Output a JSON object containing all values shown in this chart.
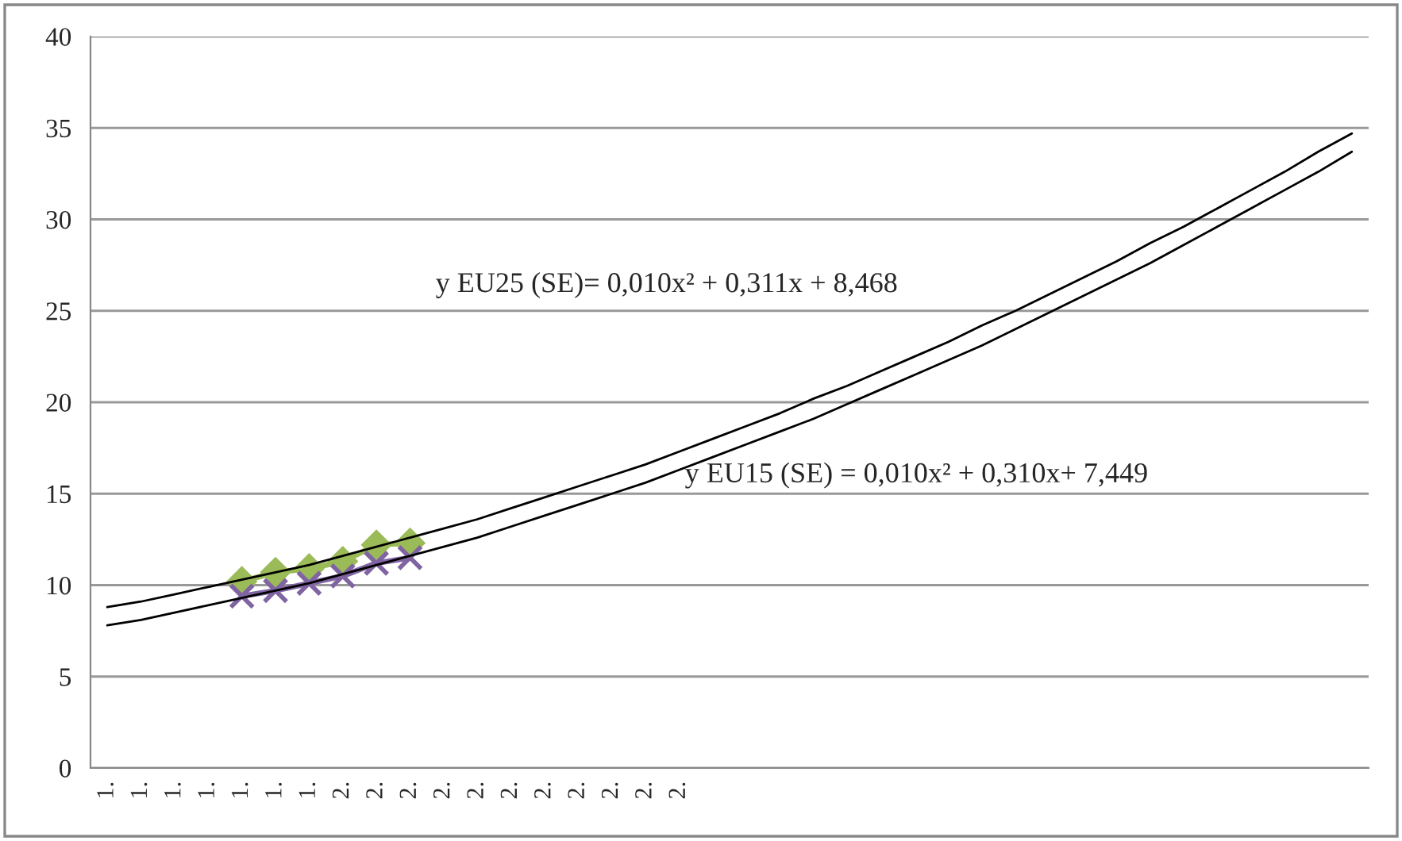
{
  "chart_data": {
    "type": "line",
    "categories": [
      "1.",
      "1.",
      "1.",
      "1.",
      "1.",
      "1.",
      "1.",
      "2.",
      "2.",
      "2.",
      "2.",
      "2.",
      "2.",
      "2.",
      "2.",
      "2.",
      "2.",
      "2.",
      null,
      null,
      null,
      null,
      null,
      null,
      null,
      null,
      null,
      null,
      null,
      null,
      null,
      null,
      null,
      null,
      null,
      null,
      null,
      null
    ],
    "series": [
      {
        "color": "#000000",
        "marker": "none",
        "values": [
          8.8,
          9.1,
          9.5,
          9.9,
          10.3,
          10.7,
          11.1,
          11.6,
          12.1,
          12.6,
          13.1,
          13.6,
          14.2,
          14.8,
          15.4,
          16.0,
          16.6,
          17.3,
          18.0,
          18.7,
          19.4,
          20.2,
          20.9,
          21.7,
          22.5,
          23.3,
          24.2,
          25.0,
          25.9,
          26.8,
          27.7,
          28.7,
          29.6,
          30.6,
          31.6,
          32.6,
          33.7,
          34.7
        ]
      },
      {
        "color": "#000000",
        "marker": "none",
        "values": [
          7.8,
          8.1,
          8.5,
          8.9,
          9.3,
          9.7,
          10.1,
          10.6,
          11.1,
          11.6,
          12.1,
          12.6,
          13.2,
          13.8,
          14.4,
          15.0,
          15.6,
          16.3,
          17.0,
          17.7,
          18.4,
          19.1,
          19.9,
          20.7,
          21.5,
          22.3,
          23.1,
          24.0,
          24.9,
          25.8,
          26.7,
          27.6,
          28.6,
          29.6,
          30.6,
          31.6,
          32.6,
          33.7
        ]
      },
      {
        "color": "#9bbb59",
        "marker": "diamond",
        "values": [
          null,
          null,
          null,
          null,
          10.2,
          10.7,
          10.9,
          11.3,
          12.2,
          12.3,
          null,
          null,
          null,
          null,
          null,
          null,
          null,
          null,
          null,
          null,
          null,
          null,
          null,
          null,
          null,
          null,
          null,
          null,
          null,
          null,
          null,
          null,
          null,
          null,
          null,
          null,
          null,
          null
        ]
      },
      {
        "color": "#8064a2",
        "marker": "cross",
        "values": [
          null,
          null,
          null,
          null,
          9.4,
          9.7,
          10.1,
          10.5,
          11.2,
          11.5,
          null,
          null,
          null,
          null,
          null,
          null,
          null,
          null,
          null,
          null,
          null,
          null,
          null,
          null,
          null,
          null,
          null,
          null,
          null,
          null,
          null,
          null,
          null,
          null,
          null,
          null,
          null,
          null
        ]
      }
    ],
    "annotations": [
      "y EU25 (SE)= 0,010x² + 0,311x + 8,468",
      "y EU15 (SE) = 0,010x² + 0,310x+ 7,449"
    ],
    "ylim": [
      0,
      40
    ],
    "yticks": [
      0,
      5,
      10,
      15,
      20,
      25,
      30,
      35,
      40
    ],
    "grid": "y",
    "legend": false
  }
}
